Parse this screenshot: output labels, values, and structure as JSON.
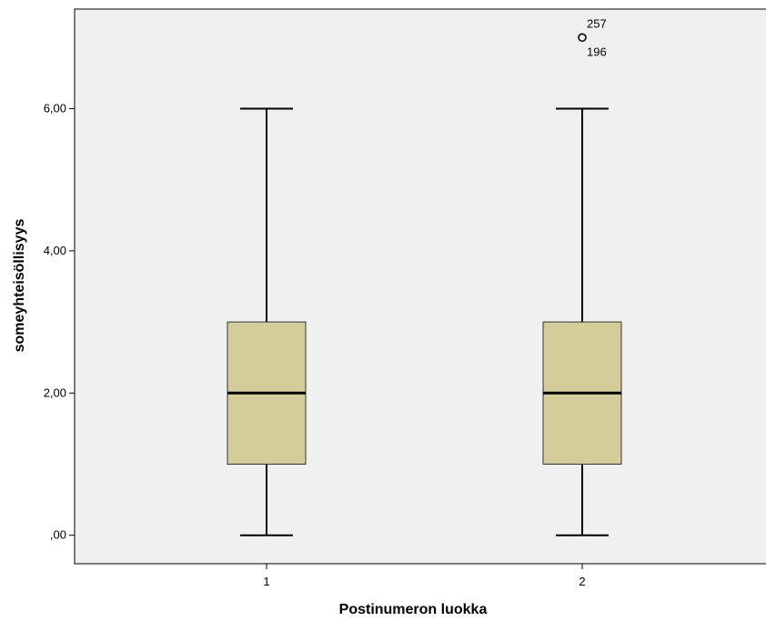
{
  "chart_data": {
    "type": "boxplot",
    "xlabel": "Postinumeron luokka",
    "ylabel": "someyhteisöllisyys",
    "ylim": [
      -0.4,
      7.4
    ],
    "y_ticks": [
      0,
      2,
      4,
      6
    ],
    "y_tick_labels": [
      ",00",
      "2,00",
      "4,00",
      "6,00"
    ],
    "categories": [
      "1",
      "2"
    ],
    "boxes": [
      {
        "category": "1",
        "whisker_low": 0,
        "q1": 1,
        "median": 2,
        "q3": 3,
        "whisker_high": 6,
        "outliers": []
      },
      {
        "category": "2",
        "whisker_low": 0,
        "q1": 1,
        "median": 2,
        "q3": 3,
        "whisker_high": 6,
        "outliers": [
          {
            "value": 7,
            "labels": [
              "257",
              "196"
            ]
          }
        ]
      }
    ],
    "colors": {
      "plot_background": "#f0f0f0",
      "box_fill": "#d4cd9a",
      "frame": "#000000"
    },
    "grid": false
  }
}
